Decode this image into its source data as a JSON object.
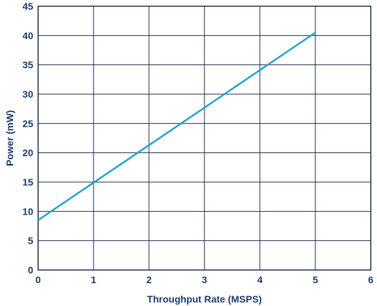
{
  "chart_data": {
    "type": "line",
    "title": "",
    "xlabel": "Throughput Rate (MSPS)",
    "ylabel": "Power (mW)",
    "xlim": [
      0,
      6
    ],
    "ylim": [
      0,
      45
    ],
    "xticks": [
      0,
      1,
      2,
      3,
      4,
      5,
      6
    ],
    "yticks": [
      0,
      5,
      10,
      15,
      20,
      25,
      30,
      35,
      40,
      45
    ],
    "grid": true,
    "series": [
      {
        "color": "#1aa3cc",
        "x": [
          0,
          1,
          2,
          3,
          4,
          5
        ],
        "y": [
          8.5,
          14.9,
          21.3,
          27.7,
          34.1,
          40.5
        ]
      }
    ]
  }
}
